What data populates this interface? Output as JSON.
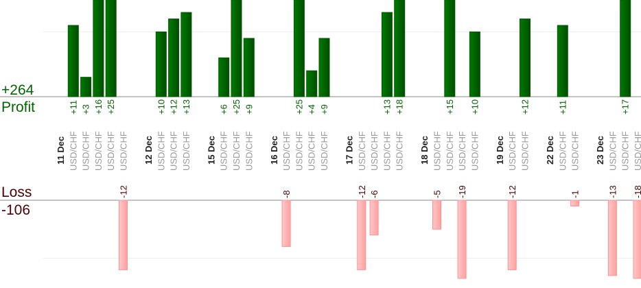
{
  "chart_data": {
    "type": "bar",
    "title": "",
    "profit_label": "Profit",
    "profit_total": "+264",
    "loss_label": "Loss",
    "loss_total": "-106",
    "colors": {
      "profit": "#006400",
      "loss": "#ffaaaa",
      "loss_text": "#4a0000",
      "pair_text": "#999999"
    },
    "profit_gridline_value": 10,
    "loss_gridline_value": -10,
    "days": [
      {
        "date": "11 Dec",
        "trades": [
          {
            "pair": "USD/CHF",
            "value": 11
          },
          {
            "pair": "USD/CHF",
            "value": 3
          },
          {
            "pair": "USD/CHF",
            "value": 16
          },
          {
            "pair": "USD/CHF",
            "value": 25
          },
          {
            "pair": "USD/CHF",
            "value": -12
          }
        ]
      },
      {
        "date": "12 Dec",
        "trades": [
          {
            "pair": "USD/CHF",
            "value": 10
          },
          {
            "pair": "USD/CHF",
            "value": 12
          },
          {
            "pair": "USD/CHF",
            "value": 13
          }
        ]
      },
      {
        "date": "15 Dec",
        "trades": [
          {
            "pair": "USD/CHF",
            "value": 6
          },
          {
            "pair": "USD/CHF",
            "value": 25
          },
          {
            "pair": "USD/CHF",
            "value": 9
          }
        ]
      },
      {
        "date": "16 Dec",
        "trades": [
          {
            "pair": "USD/CHF",
            "value": -8
          },
          {
            "pair": "USD/CHF",
            "value": 25
          },
          {
            "pair": "USD/CHF",
            "value": 4
          },
          {
            "pair": "USD/CHF",
            "value": 9
          }
        ]
      },
      {
        "date": "17 Dec",
        "trades": [
          {
            "pair": "USD/CHF",
            "value": -12
          },
          {
            "pair": "USD/CHF",
            "value": -6
          },
          {
            "pair": "USD/CHF",
            "value": 13
          },
          {
            "pair": "USD/CHF",
            "value": 18
          }
        ]
      },
      {
        "date": "18 Dec",
        "trades": [
          {
            "pair": "USD/CHF",
            "value": -5
          },
          {
            "pair": "USD/CHF",
            "value": 15
          },
          {
            "pair": "USD/CHF",
            "value": -19
          },
          {
            "pair": "USD/CHF",
            "value": 10
          }
        ]
      },
      {
        "date": "19 Dec",
        "trades": [
          {
            "pair": "USD/CHF",
            "value": -12
          },
          {
            "pair": "USD/CHF",
            "value": 12
          }
        ]
      },
      {
        "date": "22 Dec",
        "trades": [
          {
            "pair": "USD/CHF",
            "value": 11
          },
          {
            "pair": "USD/CHF",
            "value": -1
          }
        ]
      },
      {
        "date": "23 Dec",
        "trades": [
          {
            "pair": "USD/CHF",
            "value": -13
          },
          {
            "pair": "USD/CHF",
            "value": 17
          },
          {
            "pair": "USD/CHF",
            "value": -18
          }
        ]
      }
    ]
  }
}
